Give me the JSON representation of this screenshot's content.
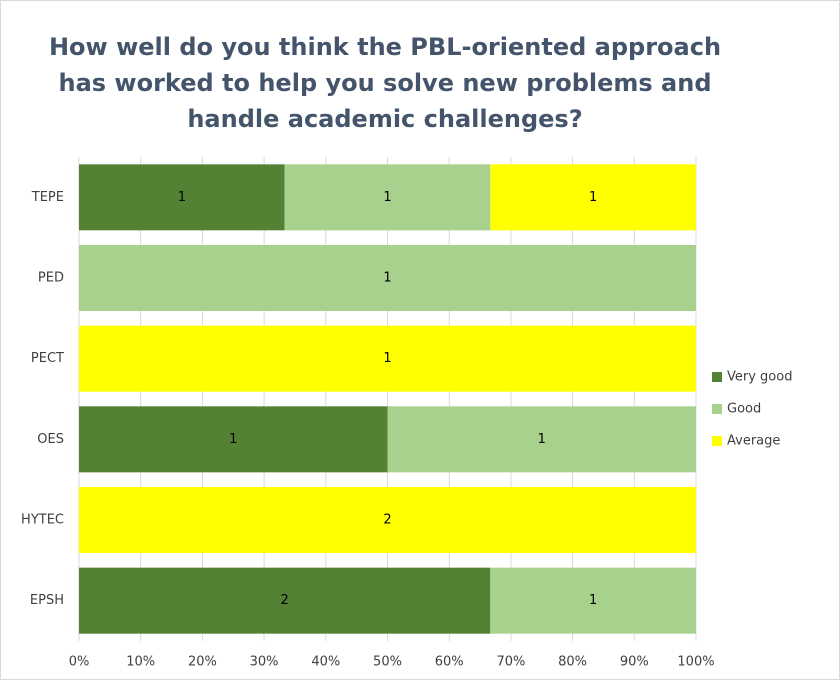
{
  "chart_data": {
    "type": "bar",
    "orientation": "horizontal",
    "stacking": "percent",
    "title": [
      "How well do you think the PBL-oriented approach",
      "has worked to help you solve new problems and",
      "handle academic challenges?"
    ],
    "categories": [
      "TEPE",
      "PED",
      "PECT",
      "OES",
      "HYTEC",
      "EPSH"
    ],
    "series": [
      {
        "name": "Very good",
        "color": "#548235",
        "values": [
          1,
          null,
          null,
          1,
          null,
          2
        ]
      },
      {
        "name": "Good",
        "color": "#a9d18e",
        "values": [
          1,
          1,
          null,
          1,
          null,
          1
        ]
      },
      {
        "name": "Average",
        "color": "#ffff00",
        "values": [
          1,
          null,
          1,
          null,
          2,
          null
        ]
      }
    ],
    "xlim": [
      0,
      100
    ],
    "xticks": [
      {
        "value": 0,
        "label": "0%"
      },
      {
        "value": 10,
        "label": "10%"
      },
      {
        "value": 20,
        "label": "20%"
      },
      {
        "value": 30,
        "label": "30%"
      },
      {
        "value": 40,
        "label": "40%"
      },
      {
        "value": 50,
        "label": "50%"
      },
      {
        "value": 60,
        "label": "60%"
      },
      {
        "value": 70,
        "label": "70%"
      },
      {
        "value": 80,
        "label": "80%"
      },
      {
        "value": 90,
        "label": "90%"
      },
      {
        "value": 100,
        "label": "100%"
      }
    ],
    "grid": true,
    "legend": "right"
  }
}
